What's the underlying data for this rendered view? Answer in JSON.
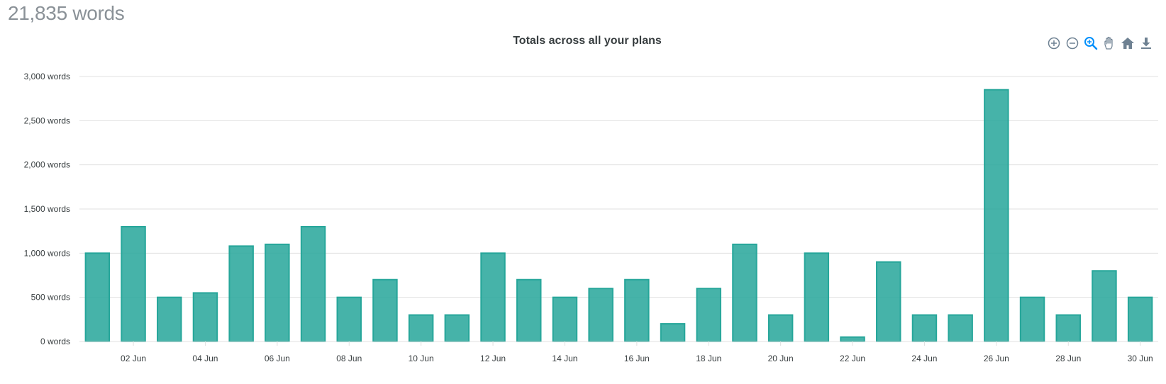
{
  "header": {
    "total_words": "21,835 words"
  },
  "toolbar": {
    "icons": [
      "zoom-in-icon",
      "zoom-out-icon",
      "selection-zoom-icon",
      "pan-icon",
      "reset-home-icon",
      "download-icon"
    ]
  },
  "chart_data": {
    "type": "bar",
    "title": "Totals across all your plans",
    "xlabel": "",
    "ylabel": "",
    "ylim": [
      0,
      3000
    ],
    "yticks": [
      0,
      500,
      1000,
      1500,
      2000,
      2500,
      3000
    ],
    "ytick_labels": [
      "0 words",
      "500 words",
      "1,000 words",
      "1,500 words",
      "2,000 words",
      "2,500 words",
      "3,000 words"
    ],
    "grid": true,
    "legend": "none",
    "bar_color": "#26a69a",
    "categories": [
      "01 Jun",
      "02 Jun",
      "03 Jun",
      "04 Jun",
      "05 Jun",
      "06 Jun",
      "07 Jun",
      "08 Jun",
      "09 Jun",
      "10 Jun",
      "11 Jun",
      "12 Jun",
      "13 Jun",
      "14 Jun",
      "15 Jun",
      "16 Jun",
      "17 Jun",
      "18 Jun",
      "19 Jun",
      "20 Jun",
      "21 Jun",
      "22 Jun",
      "23 Jun",
      "24 Jun",
      "25 Jun",
      "26 Jun",
      "27 Jun",
      "28 Jun",
      "29 Jun",
      "30 Jun"
    ],
    "values": [
      1000,
      1300,
      500,
      550,
      1080,
      1100,
      1300,
      500,
      700,
      300,
      300,
      1000,
      700,
      500,
      600,
      700,
      200,
      600,
      1100,
      300,
      1000,
      50,
      900,
      300,
      300,
      2850,
      500,
      300,
      800,
      500
    ],
    "xtick_labels": [
      "02 Jun",
      "04 Jun",
      "06 Jun",
      "08 Jun",
      "10 Jun",
      "12 Jun",
      "14 Jun",
      "16 Jun",
      "18 Jun",
      "20 Jun",
      "22 Jun",
      "24 Jun",
      "26 Jun",
      "28 Jun",
      "30 Jun"
    ]
  }
}
